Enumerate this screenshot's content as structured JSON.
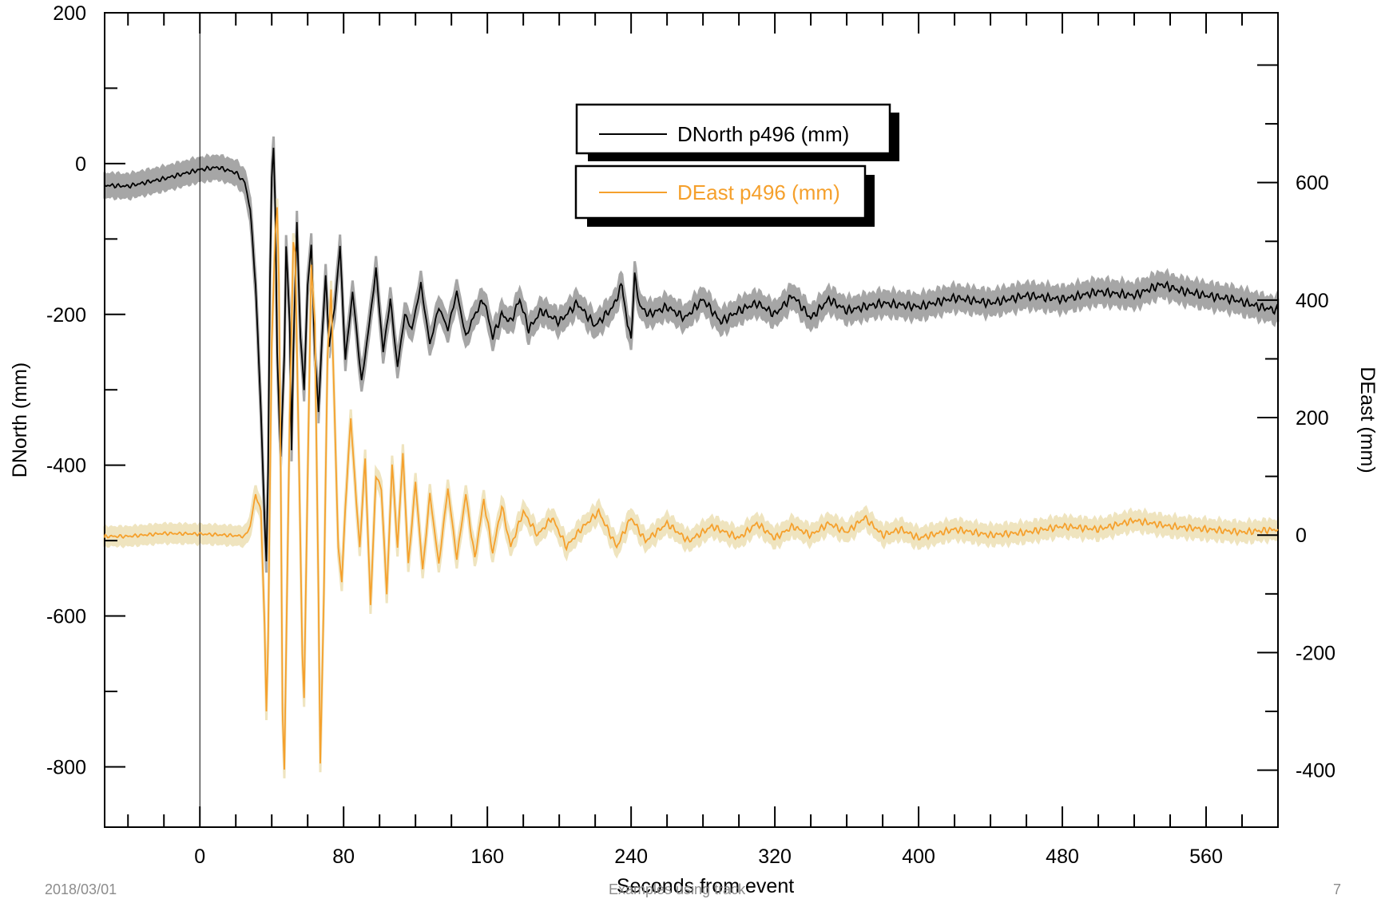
{
  "chart_data": {
    "type": "line",
    "xlabel": "Seconds from event",
    "ylabel_left": "DNorth  (mm)",
    "ylabel_right": "DEast  (mm)",
    "xlim": [
      -53,
      600
    ],
    "x_ticks": [
      0,
      80,
      160,
      240,
      320,
      400,
      480,
      560
    ],
    "ylim_left": [
      -880,
      200
    ],
    "y_ticks_left": [
      200,
      0,
      -200,
      -400,
      -600,
      -800
    ],
    "ylim_right": [
      -497,
      889
    ],
    "y_ticks_right": [
      600,
      400,
      200,
      0,
      -200,
      -400
    ],
    "event_marker_x": 0,
    "grid": false,
    "series": [
      {
        "name": "DNorth p496 (mm)",
        "axis": "left",
        "color": "#000000",
        "band_color": "#a6a6a6",
        "error_bar": 15,
        "points": [
          [
            -60,
            -28
          ],
          [
            -40,
            -30
          ],
          [
            -20,
            -20
          ],
          [
            0,
            -8
          ],
          [
            10,
            -5
          ],
          [
            20,
            -12
          ],
          [
            25,
            -25
          ],
          [
            28,
            -60
          ],
          [
            31,
            -160
          ],
          [
            34,
            -330
          ],
          [
            36,
            -470
          ],
          [
            37,
            -530
          ],
          [
            38,
            -410
          ],
          [
            39,
            -150
          ],
          [
            40,
            -20
          ],
          [
            41,
            20
          ],
          [
            42,
            -60
          ],
          [
            43,
            -250
          ],
          [
            45,
            -390
          ],
          [
            47,
            -250
          ],
          [
            48,
            -110
          ],
          [
            50,
            -210
          ],
          [
            51,
            -380
          ],
          [
            52,
            -250
          ],
          [
            54,
            -80
          ],
          [
            56,
            -230
          ],
          [
            58,
            -300
          ],
          [
            60,
            -160
          ],
          [
            62,
            -110
          ],
          [
            64,
            -250
          ],
          [
            66,
            -330
          ],
          [
            68,
            -230
          ],
          [
            70,
            -150
          ],
          [
            72,
            -240
          ],
          [
            75,
            -190
          ],
          [
            78,
            -110
          ],
          [
            81,
            -260
          ],
          [
            85,
            -170
          ],
          [
            90,
            -290
          ],
          [
            95,
            -200
          ],
          [
            98,
            -140
          ],
          [
            102,
            -250
          ],
          [
            106,
            -180
          ],
          [
            110,
            -270
          ],
          [
            114,
            -200
          ],
          [
            118,
            -220
          ],
          [
            123,
            -160
          ],
          [
            128,
            -240
          ],
          [
            133,
            -190
          ],
          [
            138,
            -220
          ],
          [
            143,
            -170
          ],
          [
            148,
            -230
          ],
          [
            153,
            -200
          ],
          [
            158,
            -180
          ],
          [
            163,
            -230
          ],
          [
            168,
            -200
          ],
          [
            173,
            -210
          ],
          [
            178,
            -180
          ],
          [
            183,
            -220
          ],
          [
            190,
            -195
          ],
          [
            200,
            -210
          ],
          [
            210,
            -185
          ],
          [
            220,
            -215
          ],
          [
            230,
            -190
          ],
          [
            235,
            -160
          ],
          [
            238,
            -215
          ],
          [
            240,
            -230
          ],
          [
            242,
            -150
          ],
          [
            245,
            -190
          ],
          [
            250,
            -200
          ],
          [
            260,
            -190
          ],
          [
            270,
            -205
          ],
          [
            280,
            -180
          ],
          [
            290,
            -210
          ],
          [
            300,
            -195
          ],
          [
            310,
            -185
          ],
          [
            320,
            -200
          ],
          [
            330,
            -175
          ],
          [
            340,
            -205
          ],
          [
            350,
            -180
          ],
          [
            360,
            -195
          ],
          [
            380,
            -185
          ],
          [
            400,
            -190
          ],
          [
            420,
            -178
          ],
          [
            440,
            -185
          ],
          [
            460,
            -175
          ],
          [
            480,
            -180
          ],
          [
            500,
            -170
          ],
          [
            520,
            -175
          ],
          [
            535,
            -160
          ],
          [
            545,
            -168
          ],
          [
            560,
            -175
          ],
          [
            575,
            -180
          ],
          [
            590,
            -190
          ],
          [
            600,
            -195
          ]
        ]
      },
      {
        "name": "DEast p496 (mm)",
        "axis": "right",
        "color": "#f5a02c",
        "band_color": "#efe4bf",
        "error_bar": 15,
        "points": [
          [
            -60,
            -2
          ],
          [
            -40,
            -2
          ],
          [
            -20,
            3
          ],
          [
            0,
            2
          ],
          [
            15,
            0
          ],
          [
            25,
            -2
          ],
          [
            28,
            15
          ],
          [
            31,
            70
          ],
          [
            34,
            40
          ],
          [
            36,
            -150
          ],
          [
            37,
            -300
          ],
          [
            38,
            -180
          ],
          [
            40,
            330
          ],
          [
            42,
            510
          ],
          [
            43,
            560
          ],
          [
            44,
            430
          ],
          [
            45,
            100
          ],
          [
            46,
            -300
          ],
          [
            47,
            -400
          ],
          [
            48,
            -200
          ],
          [
            50,
            200
          ],
          [
            52,
            500
          ],
          [
            53,
            480
          ],
          [
            55,
            150
          ],
          [
            57,
            -200
          ],
          [
            58,
            -280
          ],
          [
            60,
            100
          ],
          [
            62,
            460
          ],
          [
            64,
            360
          ],
          [
            66,
            -100
          ],
          [
            67,
            -390
          ],
          [
            69,
            -100
          ],
          [
            71,
            300
          ],
          [
            73,
            420
          ],
          [
            75,
            200
          ],
          [
            77,
            -20
          ],
          [
            79,
            -80
          ],
          [
            81,
            50
          ],
          [
            84,
            200
          ],
          [
            87,
            60
          ],
          [
            89,
            -20
          ],
          [
            92,
            130
          ],
          [
            95,
            -120
          ],
          [
            98,
            100
          ],
          [
            101,
            80
          ],
          [
            104,
            -100
          ],
          [
            107,
            120
          ],
          [
            110,
            -20
          ],
          [
            113,
            140
          ],
          [
            116,
            -50
          ],
          [
            120,
            90
          ],
          [
            124,
            -60
          ],
          [
            128,
            70
          ],
          [
            133,
            -50
          ],
          [
            138,
            80
          ],
          [
            143,
            -40
          ],
          [
            148,
            70
          ],
          [
            153,
            -40
          ],
          [
            158,
            60
          ],
          [
            163,
            -30
          ],
          [
            168,
            50
          ],
          [
            173,
            -20
          ],
          [
            180,
            40
          ],
          [
            188,
            0
          ],
          [
            196,
            30
          ],
          [
            204,
            -20
          ],
          [
            212,
            10
          ],
          [
            222,
            40
          ],
          [
            232,
            -20
          ],
          [
            240,
            30
          ],
          [
            248,
            -10
          ],
          [
            260,
            20
          ],
          [
            272,
            -10
          ],
          [
            285,
            15
          ],
          [
            300,
            -5
          ],
          [
            310,
            20
          ],
          [
            320,
            -5
          ],
          [
            330,
            15
          ],
          [
            340,
            0
          ],
          [
            350,
            20
          ],
          [
            360,
            5
          ],
          [
            370,
            30
          ],
          [
            380,
            0
          ],
          [
            390,
            10
          ],
          [
            400,
            -5
          ],
          [
            420,
            10
          ],
          [
            440,
            0
          ],
          [
            460,
            5
          ],
          [
            480,
            15
          ],
          [
            500,
            10
          ],
          [
            520,
            25
          ],
          [
            540,
            15
          ],
          [
            560,
            10
          ],
          [
            580,
            5
          ],
          [
            600,
            10
          ]
        ]
      }
    ]
  },
  "footer": {
    "date": "2018/03/01",
    "center": "Examples using track",
    "page": "7"
  }
}
